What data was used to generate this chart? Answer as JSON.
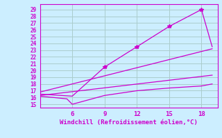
{
  "background_color": "#cceeff",
  "grid_color": "#aacccc",
  "line_color": "#cc00cc",
  "xlim": [
    3.0,
    19.5
  ],
  "ylim": [
    14.5,
    29.8
  ],
  "xticks": [
    6,
    9,
    12,
    15,
    18
  ],
  "yticks": [
    15,
    16,
    17,
    18,
    19,
    20,
    21,
    22,
    23,
    24,
    25,
    26,
    27,
    28,
    29
  ],
  "xlabel": "Windchill (Refroidissement éolien,°C)",
  "line1_x": [
    3.0,
    6.0,
    9.0,
    12.0,
    15.0,
    18.0,
    19.0
  ],
  "line1_y": [
    16.5,
    16.2,
    20.5,
    23.5,
    26.5,
    29.0,
    23.5
  ],
  "line1_marker_idx": [
    2,
    3,
    4,
    5
  ],
  "line2_x": [
    3.0,
    5.5,
    6.0,
    9.0,
    12.0,
    15.0,
    18.0,
    19.0
  ],
  "line2_y": [
    16.2,
    15.8,
    15.0,
    16.3,
    17.0,
    17.4,
    17.7,
    18.0
  ],
  "line3_x": [
    3.0,
    19.0
  ],
  "line3_y": [
    16.3,
    19.3
  ],
  "line4_x": [
    3.0,
    19.0
  ],
  "line4_y": [
    16.8,
    23.2
  ]
}
